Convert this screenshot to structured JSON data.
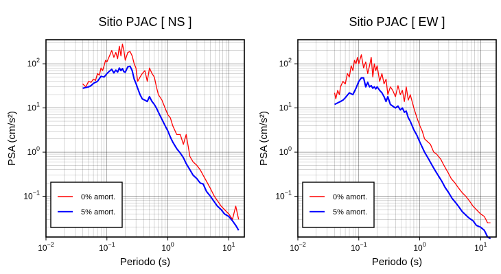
{
  "chart_data": [
    {
      "type": "line",
      "title": "Sitio PJAC [ NS ]",
      "xlabel": "Periodo (s)",
      "ylabel": "PSA (cm/s²)",
      "xscale": "log",
      "yscale": "log",
      "xlim": [
        0.01,
        18
      ],
      "ylim": [
        0.012,
        350
      ],
      "grid": true,
      "legend_position": "bottom-left",
      "x_ticks": [
        {
          "base": "10",
          "exp": "−2"
        },
        {
          "base": "10",
          "exp": "−1"
        },
        {
          "base": "10",
          "exp": "0"
        },
        {
          "base": "10",
          "exp": "1"
        }
      ],
      "y_ticks": [
        {
          "base": "10",
          "exp": "−1"
        },
        {
          "base": "10",
          "exp": "0"
        },
        {
          "base": "10",
          "exp": "1"
        },
        {
          "base": "10",
          "exp": "2"
        }
      ],
      "series": [
        {
          "name": "0% amort.",
          "color": "#ff0000",
          "x": [
            0.04,
            0.045,
            0.05,
            0.055,
            0.06,
            0.065,
            0.07,
            0.075,
            0.08,
            0.085,
            0.09,
            0.095,
            0.1,
            0.11,
            0.12,
            0.13,
            0.14,
            0.15,
            0.16,
            0.17,
            0.18,
            0.19,
            0.2,
            0.22,
            0.24,
            0.26,
            0.28,
            0.3,
            0.32,
            0.35,
            0.38,
            0.42,
            0.46,
            0.5,
            0.55,
            0.6,
            0.65,
            0.7,
            0.8,
            0.9,
            1.0,
            1.1,
            1.2,
            1.4,
            1.6,
            1.8,
            2.0,
            2.3,
            2.6,
            3.0,
            3.4,
            3.8,
            4.3,
            5.0,
            5.8,
            6.5,
            7.5,
            8.5,
            10,
            11.5,
            13,
            14.5
          ],
          "y": [
            35,
            30,
            40,
            38,
            45,
            42,
            60,
            55,
            80,
            70,
            90,
            120,
            110,
            150,
            200,
            140,
            180,
            130,
            250,
            150,
            280,
            200,
            120,
            180,
            190,
            150,
            100,
            80,
            40,
            50,
            60,
            70,
            40,
            80,
            60,
            50,
            30,
            20,
            15,
            10,
            7,
            6,
            4,
            2.5,
            2.5,
            1.5,
            2.5,
            0.8,
            0.6,
            0.5,
            0.4,
            0.3,
            0.22,
            0.15,
            0.1,
            0.08,
            0.06,
            0.05,
            0.04,
            0.03,
            0.06,
            0.03
          ]
        },
        {
          "name": "5% amort.",
          "color": "#0000ff",
          "x": [
            0.04,
            0.045,
            0.05,
            0.055,
            0.06,
            0.07,
            0.08,
            0.09,
            0.1,
            0.11,
            0.12,
            0.13,
            0.14,
            0.15,
            0.16,
            0.17,
            0.18,
            0.19,
            0.2,
            0.22,
            0.24,
            0.26,
            0.28,
            0.3,
            0.32,
            0.35,
            0.38,
            0.42,
            0.46,
            0.5,
            0.55,
            0.6,
            0.65,
            0.7,
            0.8,
            0.9,
            1.0,
            1.1,
            1.2,
            1.4,
            1.6,
            1.8,
            2.0,
            2.3,
            2.6,
            3.0,
            3.4,
            3.8,
            4.3,
            5.0,
            5.8,
            6.5,
            7.5,
            8.5,
            10,
            11.5,
            13,
            14.5
          ],
          "y": [
            28,
            29,
            30,
            32,
            36,
            40,
            52,
            50,
            60,
            68,
            75,
            62,
            72,
            65,
            80,
            70,
            78,
            66,
            64,
            85,
            88,
            70,
            45,
            36,
            28,
            20,
            16,
            15,
            14,
            18,
            14,
            12,
            10,
            8,
            5.5,
            4,
            3,
            2.2,
            1.7,
            1.2,
            0.95,
            0.75,
            0.55,
            0.4,
            0.3,
            0.25,
            0.2,
            0.19,
            0.13,
            0.1,
            0.075,
            0.06,
            0.05,
            0.04,
            0.035,
            0.028,
            0.022,
            0.017
          ]
        }
      ]
    },
    {
      "type": "line",
      "title": "Sitio PJAC [ EW ]",
      "xlabel": "Periodo (s)",
      "ylabel": "PSA (cm/s²)",
      "xscale": "log",
      "yscale": "log",
      "xlim": [
        0.01,
        18
      ],
      "ylim": [
        0.012,
        350
      ],
      "grid": true,
      "legend_position": "bottom-left",
      "x_ticks": [
        {
          "base": "10",
          "exp": "−2"
        },
        {
          "base": "10",
          "exp": "−1"
        },
        {
          "base": "10",
          "exp": "0"
        },
        {
          "base": "10",
          "exp": "1"
        }
      ],
      "y_ticks": [
        {
          "base": "10",
          "exp": "−1"
        },
        {
          "base": "10",
          "exp": "0"
        },
        {
          "base": "10",
          "exp": "1"
        },
        {
          "base": "10",
          "exp": "2"
        }
      ],
      "series": [
        {
          "name": "0% amort.",
          "color": "#ff0000",
          "x": [
            0.04,
            0.042,
            0.045,
            0.048,
            0.05,
            0.055,
            0.06,
            0.065,
            0.07,
            0.075,
            0.08,
            0.085,
            0.09,
            0.095,
            0.1,
            0.11,
            0.12,
            0.13,
            0.14,
            0.15,
            0.16,
            0.17,
            0.18,
            0.19,
            0.2,
            0.22,
            0.24,
            0.26,
            0.28,
            0.3,
            0.33,
            0.36,
            0.4,
            0.44,
            0.48,
            0.52,
            0.56,
            0.6,
            0.65,
            0.7,
            0.8,
            0.9,
            1.0,
            1.1,
            1.2,
            1.3,
            1.5,
            1.7,
            1.9,
            2.2,
            2.5,
            2.9,
            3.3,
            3.8,
            4.4,
            5.0,
            5.7,
            6.5,
            7.5,
            8.5,
            10,
            11.5,
            13,
            14.5
          ],
          "y": [
            22,
            16,
            25,
            20,
            30,
            40,
            35,
            60,
            50,
            90,
            70,
            120,
            100,
            140,
            100,
            160,
            80,
            110,
            60,
            90,
            140,
            50,
            100,
            70,
            90,
            40,
            60,
            35,
            45,
            20,
            30,
            25,
            18,
            32,
            20,
            25,
            14,
            30,
            15,
            20,
            10,
            6,
            4,
            3,
            2,
            1.8,
            1.5,
            1.0,
            0.9,
            0.7,
            0.5,
            0.35,
            0.25,
            0.2,
            0.15,
            0.12,
            0.1,
            0.08,
            0.06,
            0.05,
            0.04,
            0.035,
            0.025,
            0.025
          ]
        },
        {
          "name": "5% amort.",
          "color": "#0000ff",
          "x": [
            0.04,
            0.045,
            0.05,
            0.055,
            0.06,
            0.07,
            0.08,
            0.09,
            0.1,
            0.11,
            0.12,
            0.13,
            0.14,
            0.15,
            0.16,
            0.17,
            0.18,
            0.19,
            0.2,
            0.22,
            0.24,
            0.26,
            0.28,
            0.3,
            0.33,
            0.36,
            0.4,
            0.44,
            0.48,
            0.52,
            0.56,
            0.6,
            0.65,
            0.7,
            0.8,
            0.9,
            1.0,
            1.1,
            1.2,
            1.4,
            1.6,
            1.8,
            2.0,
            2.3,
            2.6,
            3.0,
            3.4,
            3.8,
            4.3,
            5.0,
            5.8,
            6.5,
            7.5,
            8.5,
            10,
            11.5,
            13,
            14.5
          ],
          "y": [
            12,
            13,
            14,
            15,
            17,
            22,
            20,
            28,
            40,
            48,
            48,
            30,
            38,
            30,
            32,
            28,
            30,
            27,
            30,
            25,
            22,
            18,
            14,
            18,
            12,
            11,
            10,
            11,
            9,
            10,
            8,
            8.5,
            6,
            5,
            3.2,
            2.4,
            1.7,
            1.3,
            1.0,
            0.7,
            0.5,
            0.38,
            0.3,
            0.22,
            0.16,
            0.12,
            0.09,
            0.075,
            0.06,
            0.045,
            0.037,
            0.032,
            0.028,
            0.022,
            0.02,
            0.017,
            0.012,
            0.011
          ]
        }
      ]
    }
  ]
}
